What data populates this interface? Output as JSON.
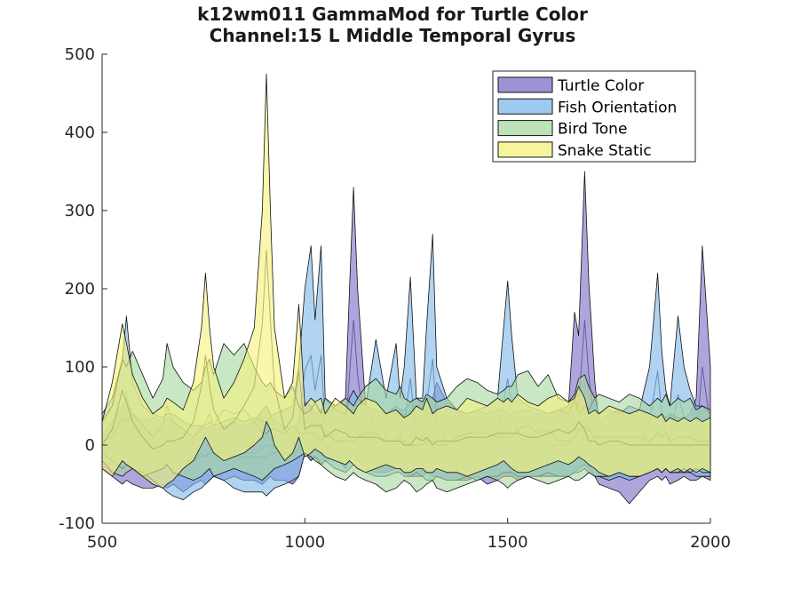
{
  "chart_data": {
    "type": "area",
    "title": "k12wm011 GammaMod for Turtle Color",
    "subtitle": "Channel:15 L Middle Temporal Gyrus",
    "xlabel": "",
    "ylabel": "",
    "xlim": [
      500,
      2000
    ],
    "ylim": [
      -100,
      500
    ],
    "xticks": [
      500,
      1000,
      1500,
      2000
    ],
    "yticks": [
      -100,
      0,
      100,
      200,
      300,
      400,
      500
    ],
    "legend_position": "top-right",
    "grid": false,
    "x": [
      500,
      525,
      550,
      560,
      575,
      600,
      625,
      650,
      660,
      675,
      700,
      725,
      745,
      755,
      765,
      775,
      800,
      825,
      850,
      875,
      895,
      905,
      915,
      925,
      950,
      970,
      985,
      1000,
      1015,
      1025,
      1040,
      1050,
      1075,
      1100,
      1110,
      1120,
      1130,
      1150,
      1175,
      1200,
      1225,
      1235,
      1245,
      1260,
      1275,
      1290,
      1300,
      1315,
      1325,
      1350,
      1375,
      1400,
      1425,
      1450,
      1475,
      1490,
      1500,
      1510,
      1525,
      1550,
      1575,
      1600,
      1625,
      1650,
      1665,
      1675,
      1690,
      1700,
      1715,
      1725,
      1750,
      1775,
      1800,
      1825,
      1850,
      1870,
      1880,
      1890,
      1900,
      1920,
      1935,
      1950,
      1965,
      1980,
      2000
    ],
    "series": [
      {
        "name": "Turtle Color",
        "color": "#7b6fc8",
        "upper": [
          10,
          30,
          50,
          60,
          40,
          30,
          35,
          30,
          35,
          30,
          20,
          10,
          25,
          20,
          25,
          20,
          25,
          30,
          25,
          30,
          45,
          50,
          40,
          30,
          25,
          20,
          30,
          55,
          50,
          40,
          45,
          40,
          50,
          60,
          200,
          330,
          200,
          50,
          45,
          40,
          50,
          45,
          45,
          55,
          60,
          50,
          60,
          60,
          80,
          55,
          45,
          40,
          45,
          40,
          45,
          45,
          40,
          40,
          45,
          45,
          40,
          40,
          45,
          50,
          170,
          140,
          350,
          210,
          80,
          30,
          40,
          45,
          40,
          45,
          40,
          35,
          40,
          35,
          40,
          35,
          35,
          40,
          60,
          255,
          100
        ],
        "lower": [
          -30,
          -40,
          -50,
          -45,
          -50,
          -55,
          -55,
          -50,
          -55,
          -50,
          -60,
          -50,
          -45,
          -50,
          -45,
          -40,
          -45,
          -40,
          -45,
          -45,
          -50,
          -45,
          -40,
          -45,
          -45,
          -50,
          -40,
          -10,
          -20,
          -15,
          -25,
          -20,
          -15,
          -30,
          -20,
          -10,
          -20,
          -30,
          -35,
          -35,
          -30,
          -30,
          -35,
          -40,
          -40,
          -40,
          -35,
          -40,
          -40,
          -45,
          -45,
          -45,
          -40,
          -50,
          -45,
          -40,
          -40,
          -40,
          -45,
          -40,
          -40,
          -40,
          -40,
          -40,
          -35,
          -30,
          -25,
          -30,
          -40,
          -50,
          -55,
          -60,
          -75,
          -60,
          -45,
          -40,
          -45,
          -40,
          -50,
          -45,
          -40,
          -45,
          -45,
          -40,
          -45
        ],
        "mean": [
          -10,
          -5,
          0,
          5,
          -5,
          -10,
          -10,
          -10,
          -10,
          -10,
          -20,
          -20,
          -10,
          -15,
          -10,
          -10,
          -10,
          -5,
          -10,
          -10,
          -5,
          0,
          0,
          -5,
          -10,
          -15,
          -5,
          20,
          15,
          10,
          10,
          10,
          15,
          15,
          90,
          160,
          90,
          10,
          5,
          5,
          10,
          5,
          5,
          10,
          10,
          5,
          10,
          10,
          20,
          5,
          0,
          -5,
          0,
          -5,
          0,
          0,
          0,
          0,
          0,
          0,
          0,
          0,
          0,
          5,
          60,
          50,
          160,
          90,
          20,
          -10,
          -5,
          -5,
          -15,
          -5,
          -5,
          -5,
          -5,
          -5,
          -5,
          -5,
          -5,
          -5,
          5,
          100,
          25
        ]
      },
      {
        "name": "Fish Orientation",
        "color": "#7fb8ea",
        "upper": [
          40,
          60,
          110,
          165,
          80,
          50,
          40,
          35,
          40,
          40,
          30,
          25,
          25,
          25,
          30,
          25,
          30,
          35,
          30,
          35,
          30,
          30,
          35,
          40,
          45,
          50,
          100,
          200,
          255,
          160,
          255,
          60,
          45,
          40,
          60,
          70,
          60,
          50,
          135,
          60,
          130,
          60,
          100,
          215,
          60,
          60,
          150,
          270,
          100,
          60,
          45,
          40,
          45,
          50,
          60,
          150,
          210,
          140,
          60,
          50,
          45,
          40,
          45,
          40,
          60,
          40,
          50,
          45,
          60,
          40,
          45,
          40,
          50,
          45,
          100,
          220,
          120,
          70,
          50,
          165,
          100,
          70,
          50,
          50,
          40
        ],
        "lower": [
          -10,
          -20,
          -30,
          -25,
          -30,
          -35,
          -45,
          -55,
          -60,
          -65,
          -70,
          -60,
          -55,
          -50,
          -45,
          -40,
          -45,
          -55,
          -60,
          -60,
          -60,
          -65,
          -60,
          -55,
          -50,
          -45,
          -40,
          -10,
          -20,
          -15,
          -25,
          -20,
          -30,
          -35,
          -30,
          -25,
          -30,
          -35,
          -40,
          -40,
          -35,
          -35,
          -40,
          -40,
          -35,
          -40,
          -45,
          -45,
          -40,
          -45,
          -45,
          -40,
          -45,
          -40,
          -40,
          -35,
          -35,
          -35,
          -40,
          -40,
          -40,
          -35,
          -40,
          -40,
          -35,
          -35,
          -30,
          -35,
          -40,
          -40,
          -45,
          -40,
          -45,
          -40,
          -35,
          -30,
          -35,
          -30,
          -35,
          -35,
          -35,
          -35,
          -40,
          -40,
          -40
        ],
        "mean": [
          10,
          15,
          40,
          70,
          25,
          5,
          -5,
          -10,
          -10,
          -15,
          -20,
          -20,
          -15,
          -15,
          -10,
          -10,
          -10,
          -15,
          -15,
          -15,
          -15,
          -15,
          -10,
          -10,
          -5,
          0,
          30,
          95,
          115,
          70,
          115,
          20,
          5,
          0,
          15,
          20,
          15,
          5,
          45,
          10,
          45,
          10,
          30,
          85,
          10,
          10,
          50,
          110,
          30,
          5,
          0,
          0,
          0,
          5,
          10,
          55,
          85,
          50,
          10,
          5,
          0,
          0,
          0,
          0,
          10,
          0,
          10,
          5,
          10,
          0,
          0,
          0,
          0,
          0,
          30,
          95,
          40,
          20,
          5,
          65,
          35,
          15,
          5,
          5,
          0
        ]
      },
      {
        "name": "Bird Tone",
        "color": "#a8d8a0",
        "upper": [
          30,
          50,
          110,
          100,
          120,
          90,
          60,
          85,
          130,
          100,
          80,
          70,
          80,
          100,
          110,
          90,
          130,
          115,
          130,
          100,
          80,
          75,
          80,
          70,
          60,
          75,
          50,
          40,
          45,
          55,
          40,
          60,
          50,
          60,
          55,
          50,
          60,
          75,
          85,
          70,
          65,
          75,
          60,
          55,
          60,
          55,
          65,
          60,
          55,
          60,
          75,
          85,
          80,
          70,
          65,
          70,
          75,
          75,
          90,
          95,
          75,
          90,
          60,
          55,
          65,
          85,
          90,
          75,
          60,
          65,
          60,
          55,
          65,
          60,
          50,
          60,
          55,
          65,
          50,
          60,
          55,
          60,
          45,
          50,
          45
        ],
        "lower": [
          -20,
          -35,
          -40,
          -35,
          -30,
          -40,
          -35,
          -30,
          -25,
          -35,
          -40,
          -45,
          -40,
          -35,
          -30,
          -40,
          -35,
          -30,
          -35,
          -40,
          -45,
          -40,
          -35,
          -30,
          -25,
          -20,
          -15,
          -10,
          -15,
          -20,
          -25,
          -30,
          -40,
          -45,
          -40,
          -35,
          -40,
          -45,
          -50,
          -60,
          -55,
          -50,
          -45,
          -50,
          -60,
          -55,
          -50,
          -45,
          -55,
          -60,
          -55,
          -50,
          -45,
          -40,
          -45,
          -50,
          -55,
          -50,
          -45,
          -40,
          -45,
          -50,
          -45,
          -40,
          -45,
          -45,
          -40,
          -35,
          -40,
          -40,
          -40,
          -35,
          -40,
          -40,
          -35,
          -30,
          -35,
          -30,
          -35,
          -35,
          -30,
          -35,
          -30,
          -35,
          -35
        ],
        "mean": [
          5,
          10,
          35,
          30,
          40,
          25,
          10,
          25,
          50,
          30,
          20,
          10,
          20,
          30,
          40,
          25,
          45,
          40,
          45,
          30,
          15,
          15,
          20,
          20,
          15,
          25,
          15,
          15,
          15,
          15,
          5,
          15,
          5,
          5,
          5,
          5,
          10,
          15,
          15,
          5,
          5,
          10,
          5,
          0,
          0,
          0,
          5,
          5,
          0,
          0,
          10,
          15,
          15,
          15,
          10,
          10,
          10,
          10,
          20,
          25,
          15,
          20,
          5,
          5,
          10,
          20,
          25,
          20,
          10,
          10,
          10,
          10,
          10,
          10,
          5,
          15,
          10,
          15,
          5,
          10,
          10,
          10,
          5,
          5,
          5
        ]
      },
      {
        "name": "Snake Static",
        "color": "#f5f07a",
        "upper": [
          30,
          80,
          155,
          130,
          90,
          60,
          40,
          50,
          60,
          55,
          45,
          80,
          150,
          220,
          150,
          100,
          60,
          80,
          110,
          150,
          300,
          475,
          300,
          150,
          60,
          80,
          180,
          50,
          60,
          55,
          60,
          40,
          60,
          50,
          45,
          40,
          50,
          60,
          55,
          40,
          45,
          40,
          35,
          40,
          50,
          45,
          60,
          40,
          45,
          50,
          45,
          60,
          55,
          50,
          60,
          55,
          60,
          55,
          65,
          55,
          50,
          60,
          65,
          55,
          60,
          75,
          60,
          40,
          45,
          40,
          50,
          45,
          40,
          45,
          40,
          35,
          40,
          30,
          35,
          30,
          35,
          30,
          35,
          30,
          35
        ],
        "lower": [
          -30,
          -40,
          -20,
          -25,
          -30,
          -40,
          -50,
          -55,
          -50,
          -45,
          -30,
          -20,
          0,
          10,
          0,
          -10,
          -20,
          -15,
          -10,
          0,
          10,
          30,
          20,
          0,
          -20,
          -10,
          10,
          -15,
          -10,
          -5,
          -10,
          -15,
          -20,
          -25,
          -20,
          -25,
          -30,
          -35,
          -30,
          -25,
          -30,
          -30,
          -35,
          -35,
          -30,
          -30,
          -35,
          -35,
          -30,
          -35,
          -35,
          -40,
          -35,
          -30,
          -25,
          -20,
          -25,
          -30,
          -35,
          -35,
          -30,
          -25,
          -20,
          -25,
          -20,
          -15,
          -20,
          -25,
          -30,
          -35,
          -40,
          -35,
          -40,
          -40,
          -35,
          -30,
          -35,
          -30,
          -35,
          -30,
          -35,
          -30,
          -35,
          -30,
          -35
        ],
        "mean": [
          0,
          20,
          70,
          55,
          30,
          10,
          -5,
          0,
          5,
          5,
          10,
          30,
          75,
          115,
          75,
          45,
          20,
          30,
          50,
          75,
          155,
          250,
          160,
          75,
          20,
          35,
          95,
          20,
          25,
          25,
          25,
          10,
          20,
          15,
          10,
          10,
          10,
          10,
          10,
          5,
          5,
          5,
          0,
          0,
          10,
          5,
          10,
          0,
          5,
          5,
          5,
          10,
          10,
          10,
          15,
          15,
          15,
          15,
          15,
          10,
          10,
          15,
          20,
          15,
          20,
          30,
          20,
          5,
          5,
          0,
          5,
          5,
          0,
          0,
          0,
          0,
          0,
          0,
          0,
          0,
          0,
          0,
          0,
          0,
          0
        ]
      }
    ]
  }
}
